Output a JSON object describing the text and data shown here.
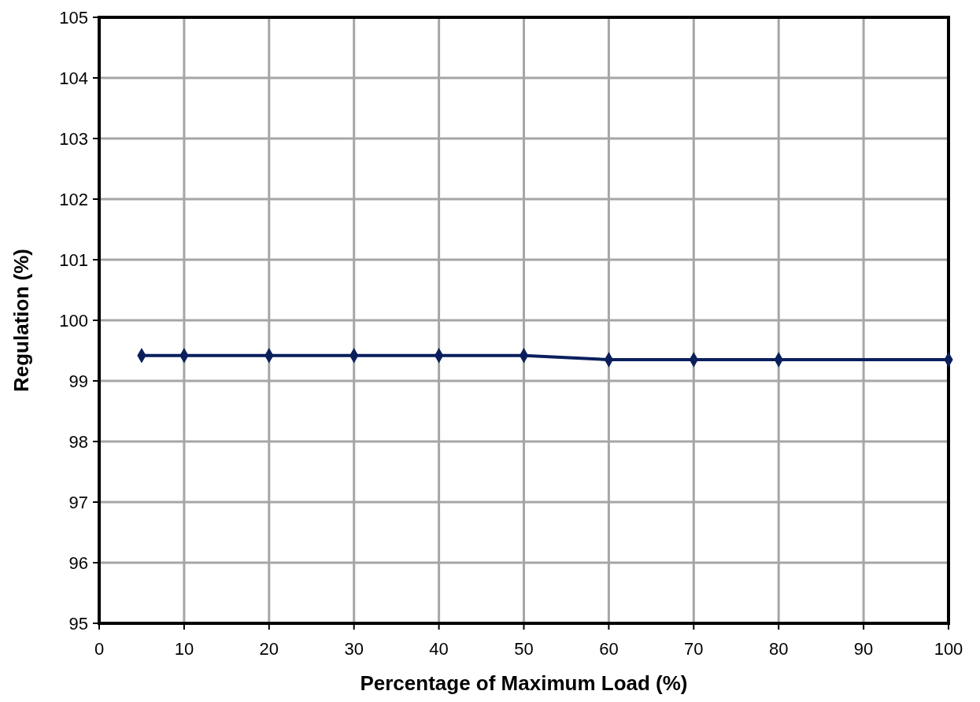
{
  "chart_data": {
    "type": "line",
    "xlabel": "Percentage of Maximum Load (%)",
    "ylabel": "Regulation (%)",
    "x": [
      5,
      10,
      20,
      30,
      40,
      50,
      60,
      70,
      80,
      100
    ],
    "series": [
      {
        "color": "#0a1f5c",
        "values": [
          99.42,
          99.42,
          99.42,
          99.42,
          99.42,
          99.42,
          99.35,
          99.35,
          99.35,
          99.35
        ]
      }
    ],
    "xlim": [
      0,
      100
    ],
    "xticks": [
      0,
      10,
      20,
      30,
      40,
      50,
      60,
      70,
      80,
      90,
      100
    ],
    "ylim": [
      95,
      105
    ],
    "yticks": [
      95,
      96,
      97,
      98,
      99,
      100,
      101,
      102,
      103,
      104,
      105
    ],
    "grid": true,
    "marker": "diamond",
    "line_style": "solid"
  }
}
